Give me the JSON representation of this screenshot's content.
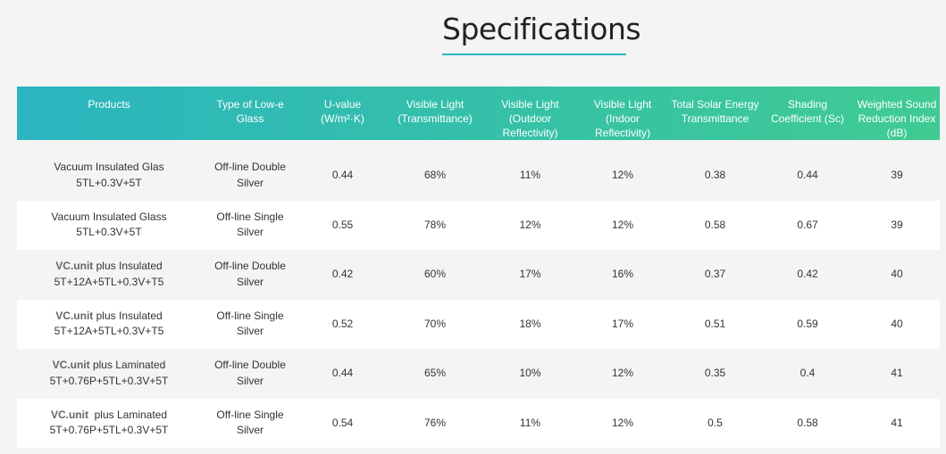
{
  "page": {
    "title": "Specifications"
  },
  "colors": {
    "header_start": "#2bb5c0",
    "header_end": "#3fcb92",
    "title_underline": "#2bb5c0"
  },
  "table": {
    "headers": [
      "Products",
      "Type of Low-e Glass",
      "U-value (W/m²·K)",
      "Visible Light (Transmittance)",
      "Visible Light (Outdoor Reflectivity)",
      "Visible Light (Indoor Reflectivity)",
      "Total Solar Energy Transmittance",
      "Shading Coefficient (Sc)",
      "Weighted Sound Reduction Index (dB)"
    ],
    "rows": [
      {
        "product_brand": "",
        "product_name": "Vacuum Insulated Glas",
        "product_spec": "5TL+0.3V+5T",
        "glass_type_line1": "Off-line Double",
        "glass_type_line2": "Silver",
        "u_value": "0.44",
        "vl_transmittance": "68%",
        "vl_outdoor": "11%",
        "vl_indoor": "12%",
        "total_solar": "0.38",
        "shading": "0.44",
        "sound": "39"
      },
      {
        "product_brand": "",
        "product_name": "Vacuum Insulated Glass",
        "product_spec": "5TL+0.3V+5T",
        "glass_type_line1": "Off-line Single",
        "glass_type_line2": "Silver",
        "u_value": "0.55",
        "vl_transmittance": "78%",
        "vl_outdoor": "12%",
        "vl_indoor": "12%",
        "total_solar": "0.58",
        "shading": "0.67",
        "sound": "39"
      },
      {
        "product_brand": "VC.unit",
        "product_name": " plus Insulated",
        "product_spec": "5T+12A+5TL+0.3V+T5",
        "glass_type_line1": "Off-line Double",
        "glass_type_line2": "Silver",
        "u_value": "0.42",
        "vl_transmittance": "60%",
        "vl_outdoor": "17%",
        "vl_indoor": "16%",
        "total_solar": "0.37",
        "shading": "0.42",
        "sound": "40"
      },
      {
        "product_brand": "VC.unit",
        "product_name": " plus Insulated",
        "product_spec": "5T+12A+5TL+0.3V+T5",
        "glass_type_line1": "Off-line Single",
        "glass_type_line2": "Silver",
        "u_value": "0.52",
        "vl_transmittance": "70%",
        "vl_outdoor": "18%",
        "vl_indoor": "17%",
        "total_solar": "0.51",
        "shading": "0.59",
        "sound": "40"
      },
      {
        "product_brand": "VC.unit",
        "product_name": " plus Laminated",
        "product_spec": "5T+0.76P+5TL+0.3V+5T",
        "glass_type_line1": "Off-line Double",
        "glass_type_line2": "Silver",
        "u_value": "0.44",
        "vl_transmittance": "65%",
        "vl_outdoor": "10%",
        "vl_indoor": "12%",
        "total_solar": "0.35",
        "shading": "0.4",
        "sound": "41"
      },
      {
        "product_brand": "VC.unit",
        "product_name": "  plus Laminated",
        "product_spec": "5T+0.76P+5TL+0.3V+5T",
        "glass_type_line1": "Off-line Single",
        "glass_type_line2": "Silver",
        "u_value": "0.54",
        "vl_transmittance": "76%",
        "vl_outdoor": "11%",
        "vl_indoor": "12%",
        "total_solar": "0.5",
        "shading": "0.58",
        "sound": "41"
      }
    ]
  }
}
